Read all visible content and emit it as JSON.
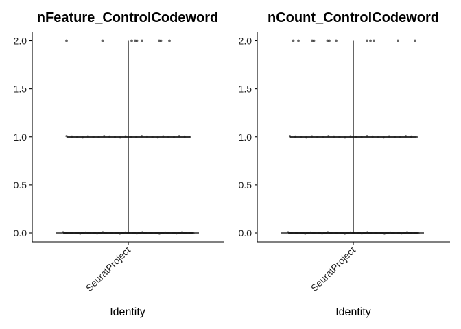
{
  "chart_data": [
    {
      "type": "violin",
      "title": "nFeature_ControlCodeword",
      "xlabel": "Identity",
      "ylabel": "",
      "categories": [
        "SeuratProject"
      ],
      "ylim": [
        -0.1,
        2.15
      ],
      "yticks": [
        "0.0",
        "0.5",
        "1.0",
        "1.5",
        "2.0"
      ],
      "bands": [
        {
          "y": 0,
          "x_from": -0.38,
          "x_to": 0.38
        },
        {
          "y": 1,
          "x_from": -0.36,
          "x_to": 0.36
        }
      ],
      "outliers_y2": [
        -0.36,
        -0.15,
        0.02,
        0.04,
        0.05,
        0.08,
        0.18,
        0.19,
        0.24
      ],
      "legend": "none",
      "grid": false
    },
    {
      "type": "violin",
      "title": "nCount_ControlCodeword",
      "xlabel": "Identity",
      "ylabel": "",
      "categories": [
        "SeuratProject"
      ],
      "ylim": [
        -0.1,
        2.15
      ],
      "yticks": [
        "0.0",
        "0.5",
        "1.0",
        "1.5",
        "2.0"
      ],
      "bands": [
        {
          "y": 0,
          "x_from": -0.38,
          "x_to": 0.38
        },
        {
          "y": 1,
          "x_from": -0.37,
          "x_to": 0.37
        }
      ],
      "outliers_y2": [
        -0.35,
        -0.32,
        -0.24,
        -0.23,
        -0.15,
        -0.14,
        -0.1,
        0.08,
        0.1,
        0.12,
        0.26,
        0.36
      ],
      "legend": "none",
      "grid": false
    }
  ]
}
